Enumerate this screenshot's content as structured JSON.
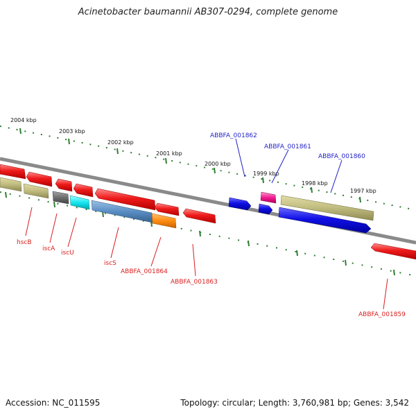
{
  "title": "Acinetobacter baumannii AB307-0294, complete genome",
  "footer": {
    "accession": "Accession: NC_011595",
    "summary": "Topology: circular; Length: 3,760,981 bp; Genes: 3,542"
  },
  "colors": {
    "backbone": "#888888",
    "ruler": "#2e7d32",
    "label_forward": "#1e1ec8",
    "label_reverse": "#d81e1e"
  },
  "kbp_labels": [
    "2004 kbp",
    "2003 kbp",
    "2002 kbp",
    "2001 kbp",
    "2000 kbp",
    "1999 kbp",
    "1998 kbp",
    "1997 kbp"
  ],
  "gene_labels": {
    "hscB": "hscB",
    "iscA": "iscA",
    "iscU": "iscU",
    "iscS": "iscS",
    "abbfa_001864": "ABBFA_001864",
    "abbfa_001863": "ABBFA_001863",
    "abbfa_001862": "ABBFA_001862",
    "abbfa_001861": "ABBFA_001861",
    "abbfa_001860": "ABBFA_001860",
    "abbfa_001859": "ABBFA_001859"
  }
}
